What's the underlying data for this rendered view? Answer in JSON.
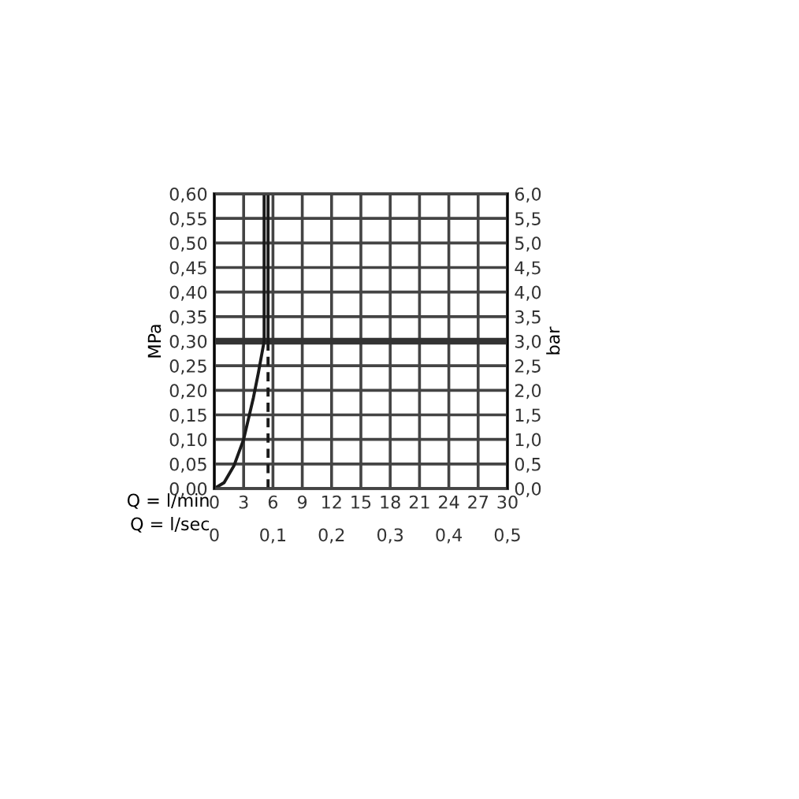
{
  "chart_data": {
    "type": "line",
    "xlabel": "Q = l/min",
    "x2label": "Q = l/sec",
    "ylabel": "MPa",
    "y2label": "bar",
    "xlim": [
      0,
      30
    ],
    "xticks": [
      0,
      3,
      6,
      9,
      12,
      15,
      18,
      21,
      24,
      27,
      30
    ],
    "x2lim": [
      0,
      0.5
    ],
    "x2ticks": [
      0,
      {
        "value": 0.1,
        "label": "0,1"
      },
      {
        "value": 0.2,
        "label": "0,2"
      },
      {
        "value": 0.3,
        "label": "0,3"
      },
      {
        "value": 0.4,
        "label": "0,4"
      },
      {
        "value": 0.5,
        "label": "0,5"
      }
    ],
    "ylim": [
      0,
      0.6
    ],
    "yticks": [
      {
        "value": 0,
        "label": "0,00"
      },
      {
        "value": 0.05,
        "label": "0,05"
      },
      {
        "value": 0.1,
        "label": "0,10"
      },
      {
        "value": 0.15,
        "label": "0,15"
      },
      {
        "value": 0.2,
        "label": "0,20"
      },
      {
        "value": 0.25,
        "label": "0,25"
      },
      {
        "value": 0.3,
        "label": "0,30"
      },
      {
        "value": 0.35,
        "label": "0,35"
      },
      {
        "value": 0.4,
        "label": "0,40"
      },
      {
        "value": 0.45,
        "label": "0,45"
      },
      {
        "value": 0.5,
        "label": "0,50"
      },
      {
        "value": 0.55,
        "label": "0,55"
      },
      {
        "value": 0.6,
        "label": "0,60"
      }
    ],
    "y2lim": [
      0,
      6
    ],
    "y2ticks": [
      {
        "value": 0,
        "label": "0,0"
      },
      {
        "value": 0.5,
        "label": "0,5"
      },
      {
        "value": 1,
        "label": "1,0"
      },
      {
        "value": 1.5,
        "label": "1,5"
      },
      {
        "value": 2,
        "label": "2,0"
      },
      {
        "value": 2.5,
        "label": "2,5"
      },
      {
        "value": 3,
        "label": "3,0"
      },
      {
        "value": 3.5,
        "label": "3,5"
      },
      {
        "value": 4,
        "label": "4,0"
      },
      {
        "value": 4.5,
        "label": "4,5"
      },
      {
        "value": 5,
        "label": "5,0"
      },
      {
        "value": 5.5,
        "label": "5,5"
      },
      {
        "value": 6,
        "label": "6,0"
      }
    ],
    "grid": true,
    "ref_lines": [
      {
        "axis": "y",
        "value": 0.3,
        "color": "#333333"
      }
    ],
    "series": [
      {
        "color": "#1a1a1a",
        "line_style": "solid",
        "x": [
          0,
          1,
          2,
          3,
          4,
          4.5,
          5.1,
          5.1
        ],
        "values": [
          0,
          0.012,
          0.046,
          0.1,
          0.185,
          0.235,
          0.3,
          0.6
        ]
      },
      {
        "color": "#1a1a1a",
        "line_style": "solid",
        "x": [
          5.5,
          5.5
        ],
        "values": [
          0.3,
          0.6
        ]
      },
      {
        "color": "#1a1a1a",
        "line_style": "dashed",
        "x": [
          5.5,
          5.5
        ],
        "values": [
          0,
          0.3
        ]
      }
    ]
  }
}
